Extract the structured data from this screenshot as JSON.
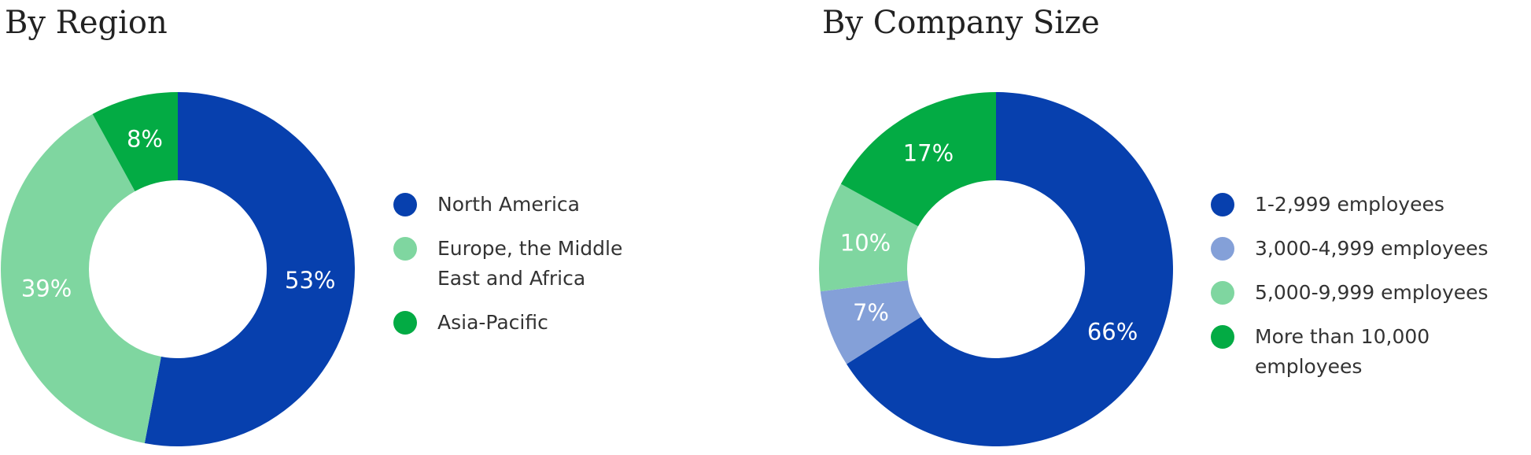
{
  "chart_data": [
    {
      "type": "donut",
      "title": "By Region",
      "categories": [
        "North America",
        "Europe, the Middle East and Africa",
        "Asia-Pacific"
      ],
      "values": [
        53,
        39,
        8
      ],
      "value_labels": [
        "53%",
        "39%",
        "8%"
      ],
      "colors": [
        "#0740ae",
        "#7fd6a0",
        "#03ab44"
      ]
    },
    {
      "type": "donut",
      "title": "By Company Size",
      "categories": [
        "1-2,999 employees",
        "3,000-4,999 employees",
        "5,000-9,999 employees",
        "More than 10,000 employees"
      ],
      "values": [
        66,
        7,
        10,
        17
      ],
      "value_labels": [
        "66%",
        "7%",
        "10%",
        "17%"
      ],
      "colors": [
        "#0740ae",
        "#84a0d8",
        "#7fd6a0",
        "#03ab44"
      ]
    }
  ]
}
